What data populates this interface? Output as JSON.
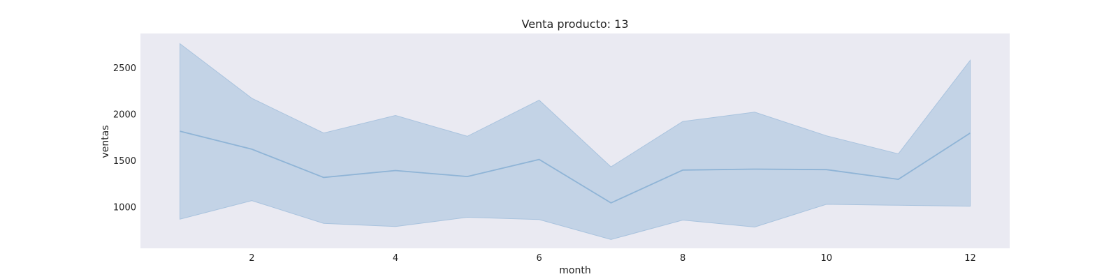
{
  "chart_data": {
    "type": "area",
    "title": "Venta producto: 13",
    "xlabel": "month",
    "ylabel": "ventas",
    "x": [
      1,
      2,
      3,
      4,
      5,
      6,
      7,
      8,
      9,
      10,
      11,
      12
    ],
    "series": [
      {
        "values": [
          1815,
          1620,
          1315,
          1390,
          1325,
          1510,
          1040,
          1395,
          1405,
          1400,
          1295,
          1795
        ],
        "upper": [
          2760,
          2170,
          1795,
          1985,
          1760,
          2150,
          1430,
          1920,
          2020,
          1765,
          1570,
          2580
        ],
        "lower": [
          865,
          1065,
          820,
          785,
          885,
          860,
          645,
          855,
          780,
          1025,
          1015,
          1005
        ]
      }
    ],
    "xticks": [
      2,
      4,
      6,
      8,
      10,
      12
    ],
    "yticks": [
      1000,
      1500,
      2000,
      2500
    ],
    "xlim": [
      0.45,
      12.55
    ],
    "ylim": [
      550,
      2870
    ],
    "grid": false,
    "colors": {
      "plot_background": "#eaeaf2",
      "band": "#a9c3de",
      "line": "#8fb4d6"
    }
  }
}
